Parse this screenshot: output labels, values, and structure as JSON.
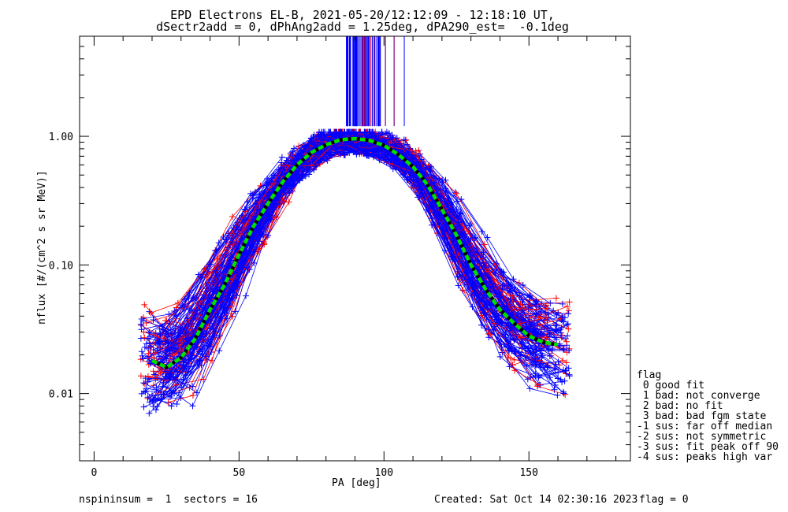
{
  "chart_data": {
    "type": "line",
    "title": "EPD Electrons EL-B, 2021-05-20/12:12:09 - 12:18:10 UT,",
    "subtitle": "dSectr2add = 0, dPhAng2add = 1.25deg, dPA290_est=  -0.1deg",
    "xlabel": "PA [deg]",
    "ylabel": "nflux [#/(cm^2 s sr MeV)]",
    "xlim": [
      -5,
      185
    ],
    "ylim": [
      0.003,
      6.0
    ],
    "yscale": "log",
    "xticks": [
      0,
      50,
      100,
      150
    ],
    "xtick_labels": [
      "0",
      "50",
      "100",
      "150"
    ],
    "yticks": [
      0.01,
      0.1,
      1.0
    ],
    "ytick_labels": [
      "0.01",
      "0.10",
      "1.00"
    ],
    "grid": false,
    "series": [
      {
        "color": "#00e000",
        "style": "dashed",
        "x": [
          20,
          25,
          30,
          35,
          40,
          45,
          50,
          55,
          60,
          65,
          70,
          75,
          80,
          85,
          90,
          95,
          100,
          105,
          110,
          115,
          120,
          125,
          130,
          135,
          140,
          145,
          150,
          155,
          160
        ],
        "values": [
          0.018,
          0.016,
          0.019,
          0.027,
          0.045,
          0.07,
          0.12,
          0.2,
          0.3,
          0.44,
          0.6,
          0.75,
          0.86,
          0.94,
          0.96,
          0.93,
          0.85,
          0.72,
          0.58,
          0.42,
          0.27,
          0.17,
          0.1,
          0.065,
          0.045,
          0.035,
          0.028,
          0.025,
          0.024
        ]
      }
    ],
    "spectra_colors": [
      "#0000ff",
      "#ff0000"
    ],
    "marker": "+"
  },
  "legend": {
    "header": "flag",
    "items": [
      " 0 good fit",
      " 1 bad: not converge",
      " 2 bad: no fit",
      " 3 bad: bad fgm state",
      "-1 sus: far off median",
      "-2 sus: not symmetric",
      "-3 sus: fit peak off 90",
      "-4 sus: peaks high var"
    ]
  },
  "footer": {
    "left": "nspininsum =  1  sectors = 16",
    "center": "Created: Sat Oct 14 02:30:16 2023",
    "right": "flag = 0"
  }
}
